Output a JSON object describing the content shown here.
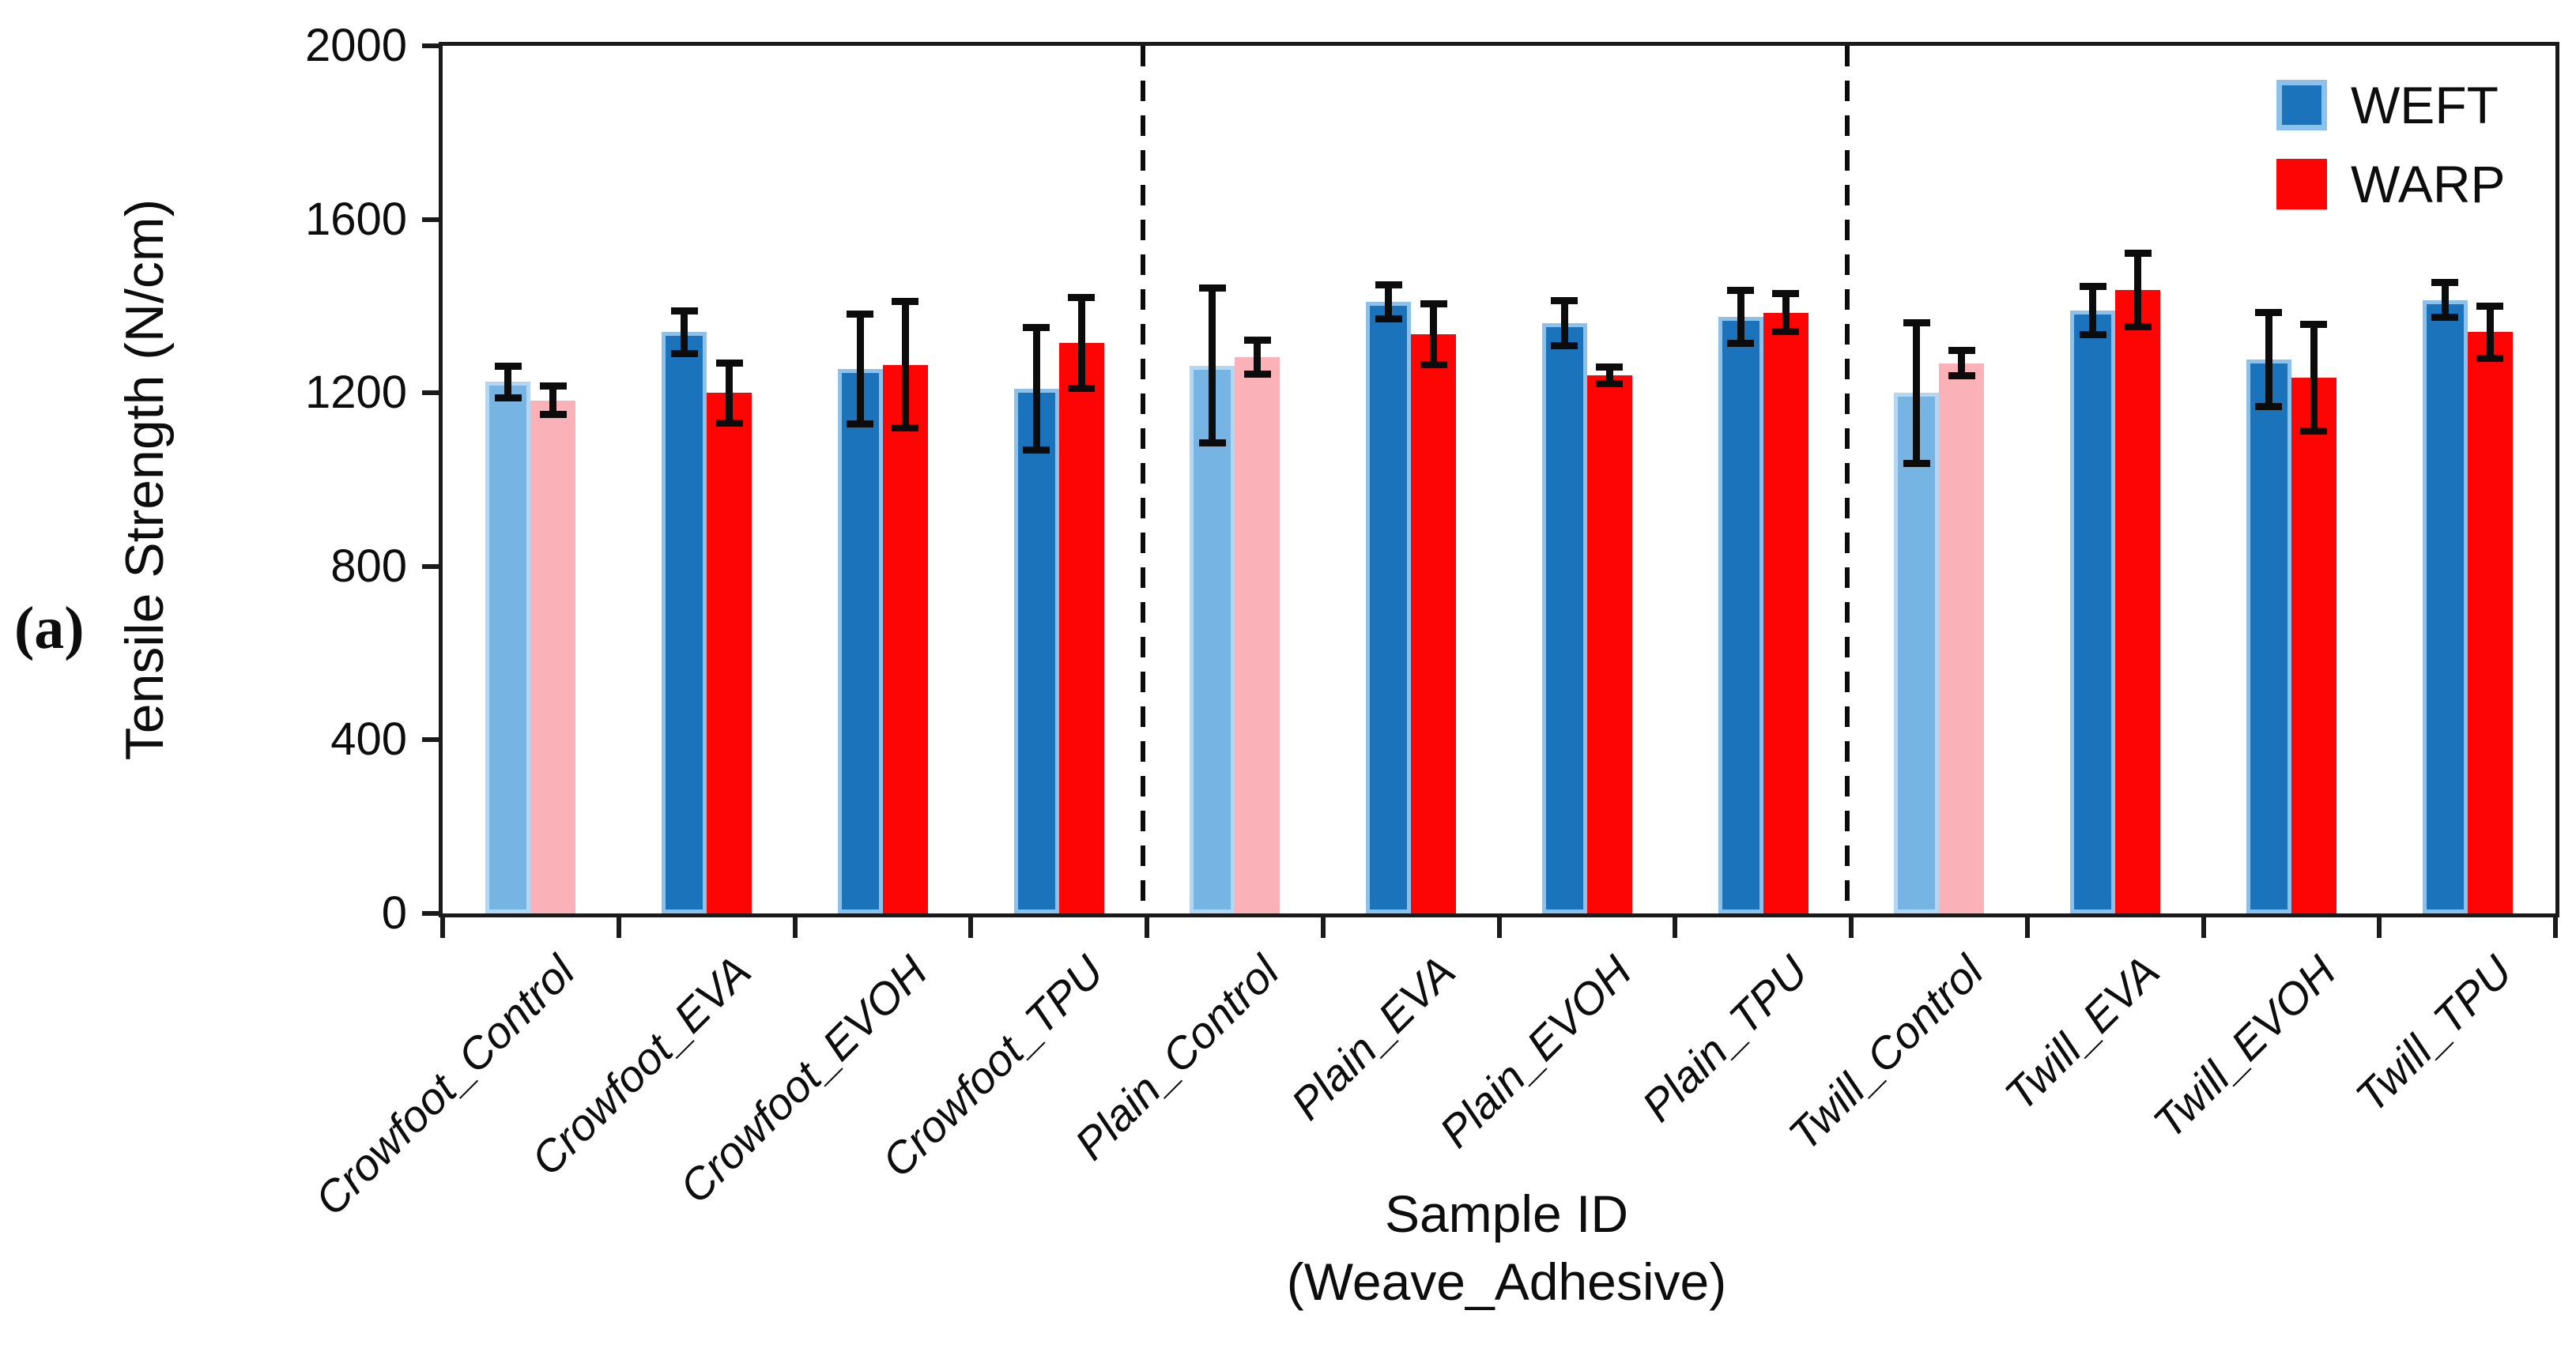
{
  "panel_label": "(a)",
  "chart_data": {
    "type": "bar",
    "title": "",
    "ylabel": "Tensile Strength (N/cm)",
    "xlabel_lines": [
      "Sample ID",
      "(Weave_Adhesive)"
    ],
    "ylim": [
      0,
      2000
    ],
    "yticks": [
      0,
      400,
      800,
      1200,
      1600,
      2000
    ],
    "grid": "off",
    "legend_position": "top-right",
    "categories": [
      "Crowfoot_Control",
      "Crowfoot_EVA",
      "Crowfoot_EVOH",
      "Crowfoot_TPU",
      "Plain_Control",
      "Plain_EVA",
      "Plain_EVOH",
      "Plain_TPU",
      "Twill_Control",
      "Twill_EVA",
      "Twill_EVOH",
      "Twill_TPU"
    ],
    "is_control": [
      true,
      false,
      false,
      false,
      true,
      false,
      false,
      false,
      true,
      false,
      false,
      false
    ],
    "separators_after_category_index": [
      3,
      7
    ],
    "series": [
      {
        "name": "WEFT",
        "color": "#1a73bb",
        "control_color": "#76b4e4",
        "border_color": "#8cc1ec",
        "control_border_color": "#b3d7f2",
        "values": [
          1225,
          1340,
          1255,
          1210,
          1263,
          1410,
          1360,
          1375,
          1200,
          1390,
          1277,
          1414
        ],
        "errors": [
          38,
          50,
          128,
          142,
          180,
          40,
          53,
          62,
          163,
          57,
          110,
          41
        ]
      },
      {
        "name": "WARP",
        "color": "#fd0505",
        "control_color": "#fbb1b8",
        "border_color": null,
        "control_border_color": null,
        "values": [
          1183,
          1200,
          1265,
          1315,
          1283,
          1335,
          1240,
          1385,
          1268,
          1437,
          1235,
          1340
        ],
        "errors": [
          33,
          70,
          147,
          106,
          40,
          71,
          20,
          45,
          30,
          86,
          124,
          61
        ]
      }
    ],
    "colors": {
      "frame": "#1a1a1a",
      "error_bar": "#0c0c0c",
      "text": "#0d0d0d"
    }
  }
}
